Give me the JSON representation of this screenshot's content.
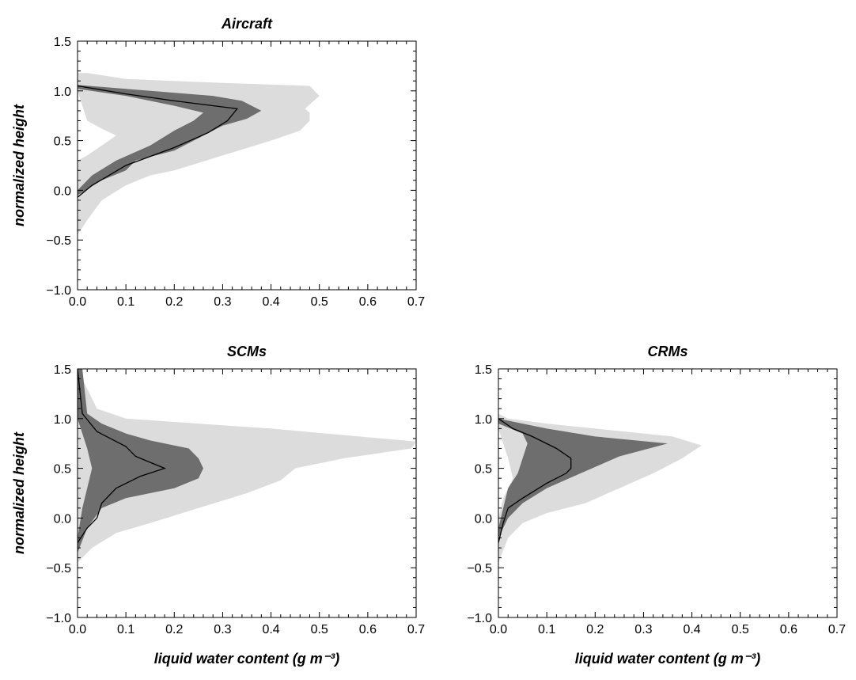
{
  "chart_data": [
    {
      "type": "area",
      "title": "Aircraft",
      "xlabel": "",
      "ylabel": "normalized height",
      "xlim": [
        0,
        0.7
      ],
      "ylim": [
        -1.0,
        1.5
      ],
      "xticks": [
        "0.0",
        "0.1",
        "0.2",
        "0.3",
        "0.4",
        "0.5",
        "0.6",
        "0.7"
      ],
      "yticks": [
        "−1.0",
        "−0.5",
        "0.0",
        "0.5",
        "1.0",
        "1.5"
      ],
      "grid": false,
      "colors": {
        "outer": "#dcdcdc",
        "inner": "#6e6e6e",
        "line": "#000000"
      },
      "outer_band": [
        [
          0.0,
          -0.45
        ],
        [
          0.02,
          -0.3
        ],
        [
          0.05,
          -0.1
        ],
        [
          0.1,
          0.05
        ],
        [
          0.15,
          0.15
        ],
        [
          0.2,
          0.2
        ],
        [
          0.3,
          0.35
        ],
        [
          0.4,
          0.5
        ],
        [
          0.46,
          0.6
        ],
        [
          0.48,
          0.7
        ],
        [
          0.48,
          0.78
        ],
        [
          0.47,
          0.82
        ],
        [
          0.5,
          0.95
        ],
        [
          0.48,
          1.05
        ],
        [
          0.3,
          1.08
        ],
        [
          0.1,
          1.12
        ],
        [
          0.02,
          1.18
        ],
        [
          0.0,
          1.18
        ],
        [
          0.0,
          1.0
        ],
        [
          0.02,
          0.7
        ],
        [
          0.05,
          0.62
        ],
        [
          0.08,
          0.55
        ],
        [
          0.05,
          0.45
        ],
        [
          0.02,
          0.35
        ],
        [
          0.0,
          0.3
        ]
      ],
      "inner_band": [
        [
          0.0,
          -0.05
        ],
        [
          0.05,
          0.1
        ],
        [
          0.1,
          0.2
        ],
        [
          0.12,
          0.3
        ],
        [
          0.2,
          0.4
        ],
        [
          0.26,
          0.55
        ],
        [
          0.3,
          0.65
        ],
        [
          0.35,
          0.72
        ],
        [
          0.38,
          0.8
        ],
        [
          0.34,
          0.9
        ],
        [
          0.28,
          0.95
        ],
        [
          0.1,
          1.02
        ],
        [
          0.0,
          1.06
        ],
        [
          0.0,
          1.02
        ],
        [
          0.1,
          0.95
        ],
        [
          0.2,
          0.85
        ],
        [
          0.26,
          0.78
        ],
        [
          0.24,
          0.7
        ],
        [
          0.2,
          0.6
        ],
        [
          0.15,
          0.45
        ],
        [
          0.08,
          0.3
        ],
        [
          0.03,
          0.15
        ],
        [
          0.0,
          0.0
        ]
      ],
      "median": [
        [
          0.0,
          -0.07
        ],
        [
          0.03,
          0.05
        ],
        [
          0.1,
          0.25
        ],
        [
          0.2,
          0.43
        ],
        [
          0.27,
          0.58
        ],
        [
          0.31,
          0.7
        ],
        [
          0.33,
          0.82
        ],
        [
          0.2,
          0.9
        ],
        [
          0.1,
          0.97
        ],
        [
          0.0,
          1.05
        ]
      ]
    },
    {
      "type": "area",
      "title": "SCMs",
      "xlabel": "liquid water content (g m⁻³)",
      "ylabel": "normalized height",
      "xlim": [
        0,
        0.7
      ],
      "ylim": [
        -1.0,
        1.5
      ],
      "xticks": [
        "0.0",
        "0.1",
        "0.2",
        "0.3",
        "0.4",
        "0.5",
        "0.6",
        "0.7"
      ],
      "yticks": [
        "−1.0",
        "−0.5",
        "0.0",
        "0.5",
        "1.0",
        "1.5"
      ],
      "grid": false,
      "colors": {
        "outer": "#dcdcdc",
        "inner": "#6e6e6e",
        "line": "#000000"
      },
      "outer_band": [
        [
          0.0,
          -0.45
        ],
        [
          0.03,
          -0.3
        ],
        [
          0.08,
          -0.15
        ],
        [
          0.15,
          -0.05
        ],
        [
          0.25,
          0.1
        ],
        [
          0.35,
          0.25
        ],
        [
          0.42,
          0.38
        ],
        [
          0.45,
          0.5
        ],
        [
          0.55,
          0.6
        ],
        [
          0.69,
          0.7
        ],
        [
          0.7,
          0.77
        ],
        [
          0.4,
          0.9
        ],
        [
          0.1,
          1.0
        ],
        [
          0.04,
          1.1
        ],
        [
          0.0,
          1.5
        ],
        [
          0.0,
          1.2
        ]
      ],
      "inner_band": [
        [
          0.0,
          -0.35
        ],
        [
          0.02,
          -0.1
        ],
        [
          0.05,
          0.1
        ],
        [
          0.1,
          0.2
        ],
        [
          0.2,
          0.3
        ],
        [
          0.25,
          0.4
        ],
        [
          0.26,
          0.5
        ],
        [
          0.25,
          0.6
        ],
        [
          0.23,
          0.7
        ],
        [
          0.15,
          0.78
        ],
        [
          0.1,
          0.85
        ],
        [
          0.05,
          0.95
        ],
        [
          0.02,
          1.05
        ],
        [
          0.01,
          1.5
        ],
        [
          0.0,
          1.5
        ],
        [
          0.0,
          1.0
        ],
        [
          0.02,
          0.7
        ],
        [
          0.03,
          0.5
        ],
        [
          0.02,
          0.3
        ],
        [
          0.01,
          0.1
        ],
        [
          0.0,
          -0.2
        ]
      ],
      "median": [
        [
          0.0,
          -0.25
        ],
        [
          0.02,
          -0.1
        ],
        [
          0.04,
          0.0
        ],
        [
          0.05,
          0.15
        ],
        [
          0.08,
          0.3
        ],
        [
          0.13,
          0.42
        ],
        [
          0.18,
          0.5
        ],
        [
          0.12,
          0.62
        ],
        [
          0.1,
          0.72
        ],
        [
          0.04,
          0.87
        ],
        [
          0.01,
          1.05
        ],
        [
          0.0,
          1.5
        ]
      ]
    },
    {
      "type": "area",
      "title": "CRMs",
      "xlabel": "liquid water content (g m⁻³)",
      "ylabel": "",
      "xlim": [
        0,
        0.7
      ],
      "ylim": [
        -1.0,
        1.5
      ],
      "xticks": [
        "0.0",
        "0.1",
        "0.2",
        "0.3",
        "0.4",
        "0.5",
        "0.6",
        "0.7"
      ],
      "yticks": [
        "−1.0",
        "−0.5",
        "0.0",
        "0.5",
        "1.0",
        "1.5"
      ],
      "grid": false,
      "colors": {
        "outer": "#dcdcdc",
        "inner": "#6e6e6e",
        "line": "#000000"
      },
      "outer_band": [
        [
          0.0,
          -0.45
        ],
        [
          0.02,
          -0.2
        ],
        [
          0.05,
          -0.05
        ],
        [
          0.1,
          0.05
        ],
        [
          0.18,
          0.15
        ],
        [
          0.25,
          0.3
        ],
        [
          0.32,
          0.45
        ],
        [
          0.38,
          0.6
        ],
        [
          0.42,
          0.73
        ],
        [
          0.36,
          0.82
        ],
        [
          0.2,
          0.9
        ],
        [
          0.1,
          0.95
        ],
        [
          0.02,
          1.0
        ],
        [
          0.0,
          1.05
        ],
        [
          0.0,
          0.9
        ],
        [
          0.02,
          0.6
        ],
        [
          0.03,
          0.4
        ],
        [
          0.01,
          0.2
        ],
        [
          0.0,
          0.0
        ]
      ],
      "inner_band": [
        [
          0.0,
          -0.2
        ],
        [
          0.02,
          0.0
        ],
        [
          0.05,
          0.15
        ],
        [
          0.1,
          0.3
        ],
        [
          0.17,
          0.45
        ],
        [
          0.25,
          0.62
        ],
        [
          0.35,
          0.75
        ],
        [
          0.2,
          0.82
        ],
        [
          0.1,
          0.9
        ],
        [
          0.03,
          0.97
        ],
        [
          0.0,
          1.0
        ],
        [
          0.0,
          0.95
        ],
        [
          0.05,
          0.85
        ],
        [
          0.06,
          0.75
        ],
        [
          0.05,
          0.6
        ],
        [
          0.04,
          0.45
        ],
        [
          0.02,
          0.3
        ],
        [
          0.01,
          0.1
        ],
        [
          0.0,
          -0.1
        ]
      ],
      "median": [
        [
          0.0,
          -0.25
        ],
        [
          0.01,
          -0.05
        ],
        [
          0.02,
          0.1
        ],
        [
          0.05,
          0.2
        ],
        [
          0.1,
          0.35
        ],
        [
          0.14,
          0.45
        ],
        [
          0.15,
          0.5
        ],
        [
          0.15,
          0.6
        ],
        [
          0.12,
          0.7
        ],
        [
          0.07,
          0.82
        ],
        [
          0.03,
          0.9
        ],
        [
          0.0,
          1.0
        ]
      ]
    }
  ]
}
